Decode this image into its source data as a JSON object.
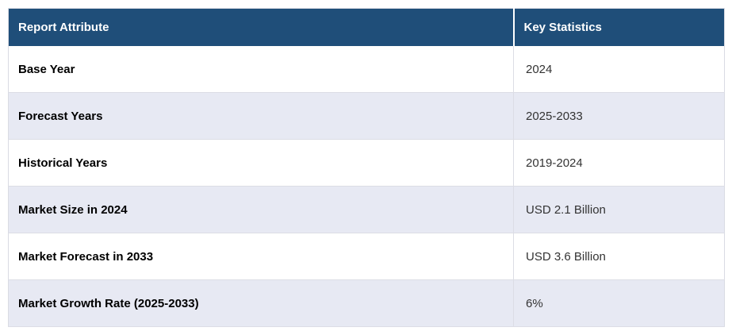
{
  "colors": {
    "header_background": "#1f4e79",
    "header_text": "#ffffff",
    "row_default_background": "#ffffff",
    "row_alternate_background": "#e7e9f3",
    "border": "#dcdde5",
    "attribute_text": "#000000",
    "statistic_text": "#333333"
  },
  "table": {
    "headers": {
      "attribute": "Report Attribute",
      "statistic": "Key Statistics"
    },
    "rows": [
      {
        "attribute": "Base Year",
        "statistic": "2024"
      },
      {
        "attribute": "Forecast Years",
        "statistic": "2025-2033"
      },
      {
        "attribute": "Historical Years",
        "statistic": "2019-2024"
      },
      {
        "attribute": "Market Size in 2024",
        "statistic": "USD 2.1 Billion"
      },
      {
        "attribute": "Market Forecast in 2033",
        "statistic": "USD 3.6 Billion"
      },
      {
        "attribute": "Market Growth Rate (2025-2033)",
        "statistic": "6%"
      }
    ]
  },
  "chart_data": {
    "type": "table",
    "columns": [
      "Report Attribute",
      "Key Statistics"
    ],
    "rows": [
      [
        "Base Year",
        "2024"
      ],
      [
        "Forecast Years",
        "2025-2033"
      ],
      [
        "Historical Years",
        "2019-2024"
      ],
      [
        "Market Size in 2024",
        "USD 2.1 Billion"
      ],
      [
        "Market Forecast in 2033",
        "USD 3.6 Billion"
      ],
      [
        "Market Growth Rate (2025-2033)",
        "6%"
      ]
    ]
  }
}
